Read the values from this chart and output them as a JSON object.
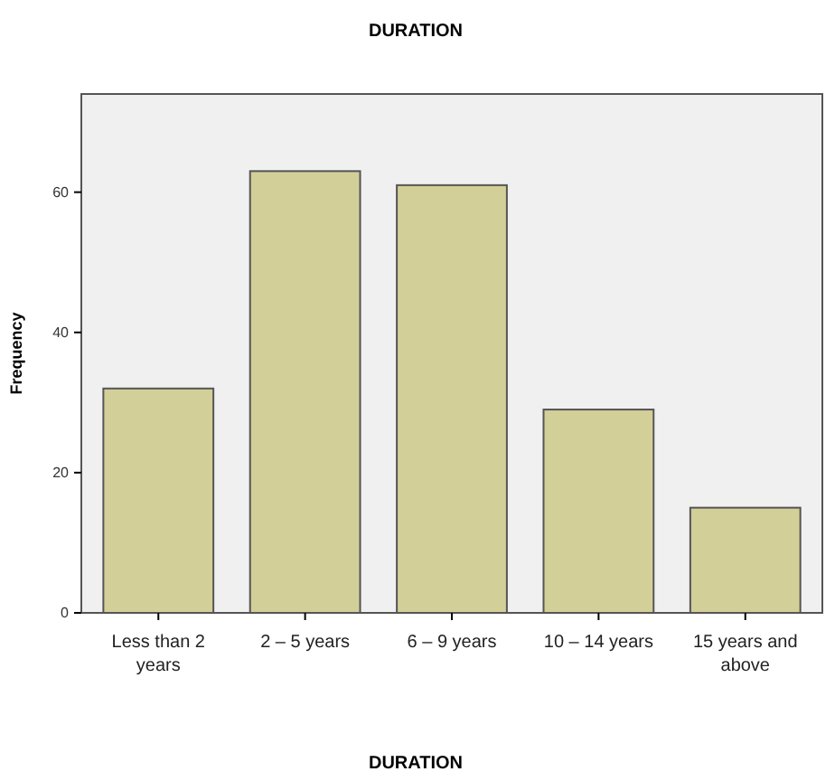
{
  "chart_data": {
    "type": "bar",
    "title": "DURATION",
    "xlabel": "DURATION",
    "ylabel": "Frequency",
    "categories": [
      "Less than 2 years",
      "2 – 5 years",
      "6 – 9 years",
      "10 – 14 years",
      "15 years and above"
    ],
    "values": [
      32,
      63,
      61,
      29,
      15
    ],
    "color": "#d3cf98",
    "ylim": [
      0,
      74
    ],
    "yticks": [
      0,
      20,
      40,
      60
    ],
    "grid": false
  }
}
